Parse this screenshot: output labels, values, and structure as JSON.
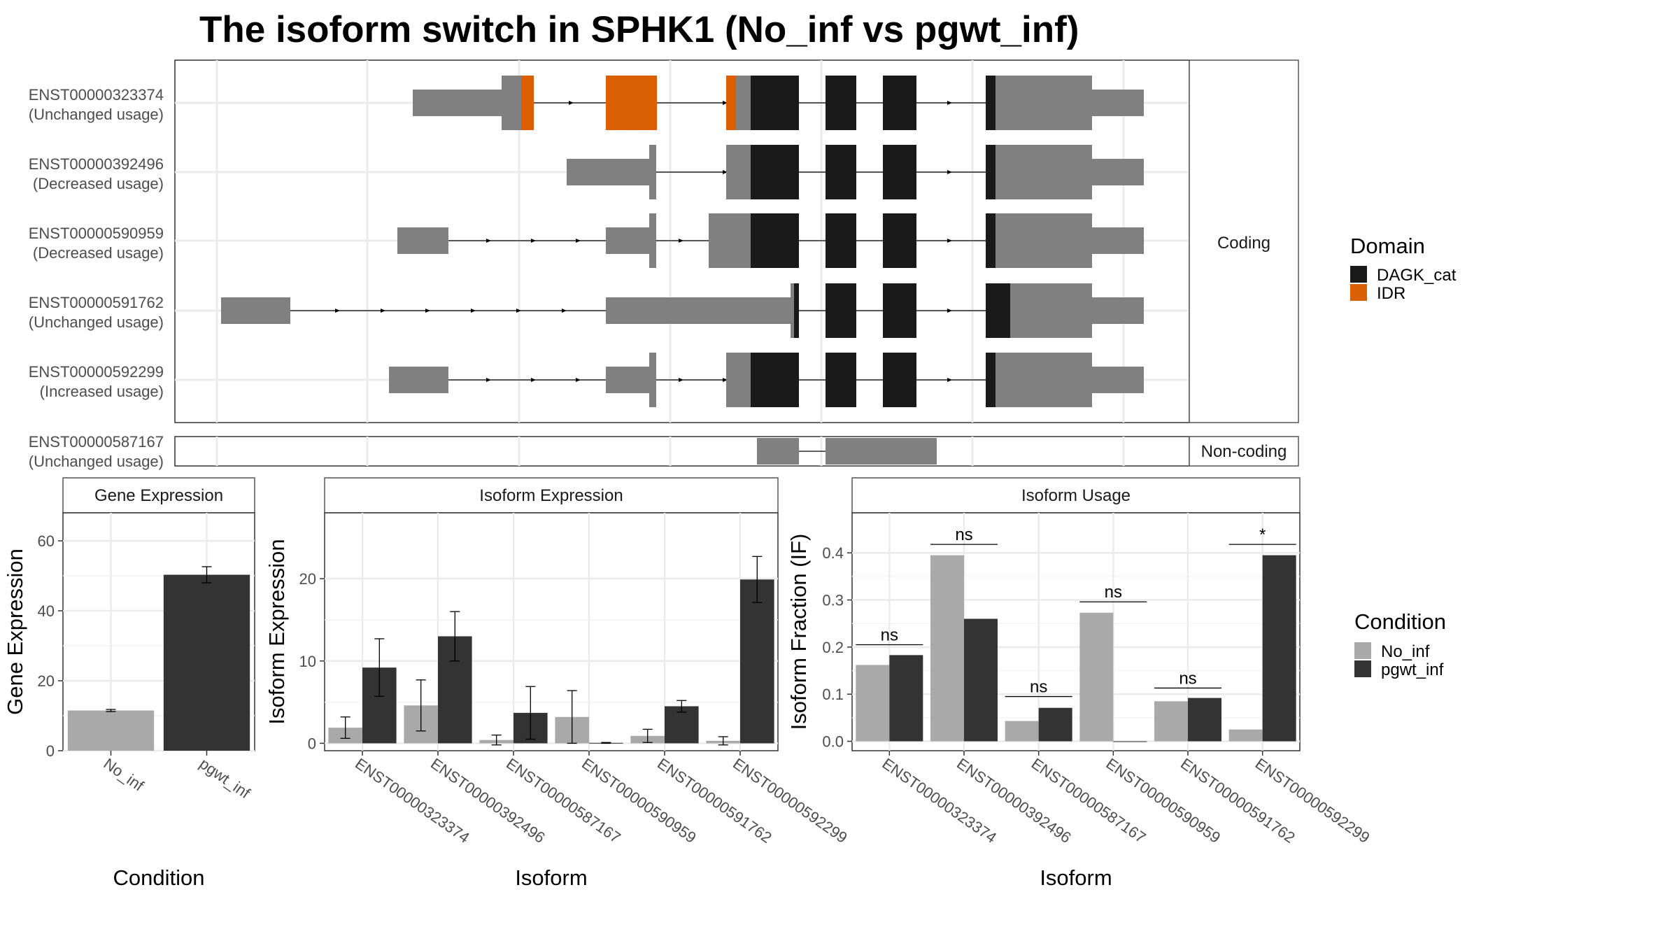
{
  "title": "The isoform switch in SPHK1 (No_inf vs pgwt_inf)",
  "structure_panel": {
    "coding_label": "Coding",
    "noncoding_label": "Non-coding",
    "transcripts": [
      {
        "id": "ENST00000323374",
        "usage": "(Unchanged usage)",
        "group": "coding"
      },
      {
        "id": "ENST00000392496",
        "usage": "(Decreased usage)",
        "group": "coding"
      },
      {
        "id": "ENST00000590959",
        "usage": "(Decreased usage)",
        "group": "coding"
      },
      {
        "id": "ENST00000591762",
        "usage": "(Unchanged usage)",
        "group": "coding"
      },
      {
        "id": "ENST00000592299",
        "usage": "(Increased usage)",
        "group": "coding"
      },
      {
        "id": "ENST00000587167",
        "usage": "(Unchanged usage)",
        "group": "noncoding"
      }
    ],
    "domain_legend": {
      "title": "Domain",
      "items": [
        {
          "label": "DAGK_cat",
          "color": "#1a1a1a"
        },
        {
          "label": "IDR",
          "color": "#d95f02"
        }
      ]
    }
  },
  "condition_legend": {
    "title": "Condition",
    "items": [
      {
        "label": "No_inf",
        "color": "#a9a9a9"
      },
      {
        "label": "pgwt_inf",
        "color": "#333333"
      }
    ]
  },
  "chart_data": [
    {
      "type": "bar",
      "title": "Gene Expression",
      "xlabel": "Condition",
      "ylabel": "Gene Expression",
      "categories": [
        "No_inf",
        "pgwt_inf"
      ],
      "values": [
        11.5,
        50.3
      ],
      "errors": [
        0.3,
        2.3
      ],
      "ylim": [
        0,
        68
      ],
      "yticks": [
        0,
        20,
        40,
        60
      ],
      "colors": [
        "#a9a9a9",
        "#333333"
      ]
    },
    {
      "type": "bar",
      "title": "Isoform Expression",
      "xlabel": "Isoform",
      "ylabel": "Isoform Expression",
      "categories": [
        "ENST00000323374",
        "ENST00000392496",
        "ENST00000587167",
        "ENST00000590959",
        "ENST00000591762",
        "ENST00000592299"
      ],
      "series": [
        {
          "name": "No_inf",
          "values": [
            1.9,
            4.6,
            0.4,
            3.2,
            0.9,
            0.3
          ],
          "errors": [
            1.3,
            3.1,
            0.6,
            3.2,
            0.8,
            0.5
          ]
        },
        {
          "name": "pgwt_inf",
          "values": [
            9.2,
            13.0,
            3.7,
            0.05,
            4.5,
            19.9
          ],
          "errors": [
            3.5,
            3.0,
            3.2,
            0.05,
            0.7,
            2.8
          ]
        }
      ],
      "ylim": [
        -0.9,
        28
      ],
      "yticks": [
        0,
        10,
        20
      ]
    },
    {
      "type": "bar",
      "title": "Isoform Usage",
      "xlabel": "Isoform",
      "ylabel": "Isoform Fraction (IF)",
      "categories": [
        "ENST00000323374",
        "ENST00000392496",
        "ENST00000587167",
        "ENST00000590959",
        "ENST00000591762",
        "ENST00000592299"
      ],
      "series": [
        {
          "name": "No_inf",
          "values": [
            0.162,
            0.395,
            0.043,
            0.273,
            0.085,
            0.025
          ]
        },
        {
          "name": "pgwt_inf",
          "values": [
            0.183,
            0.26,
            0.071,
            0.0,
            0.092,
            0.395
          ]
        }
      ],
      "significance": [
        "ns",
        "ns",
        "ns",
        "ns",
        "ns",
        "*"
      ],
      "sig_marker_y": [
        0.205,
        0.418,
        0.095,
        0.296,
        0.113,
        0.418
      ],
      "ylim": [
        -0.02,
        0.485
      ],
      "yticks": [
        0.0,
        0.1,
        0.2,
        0.3,
        0.4
      ],
      "ytick_labels": [
        "0.0",
        "0.1",
        "0.2",
        "0.3",
        "0.4"
      ]
    }
  ]
}
